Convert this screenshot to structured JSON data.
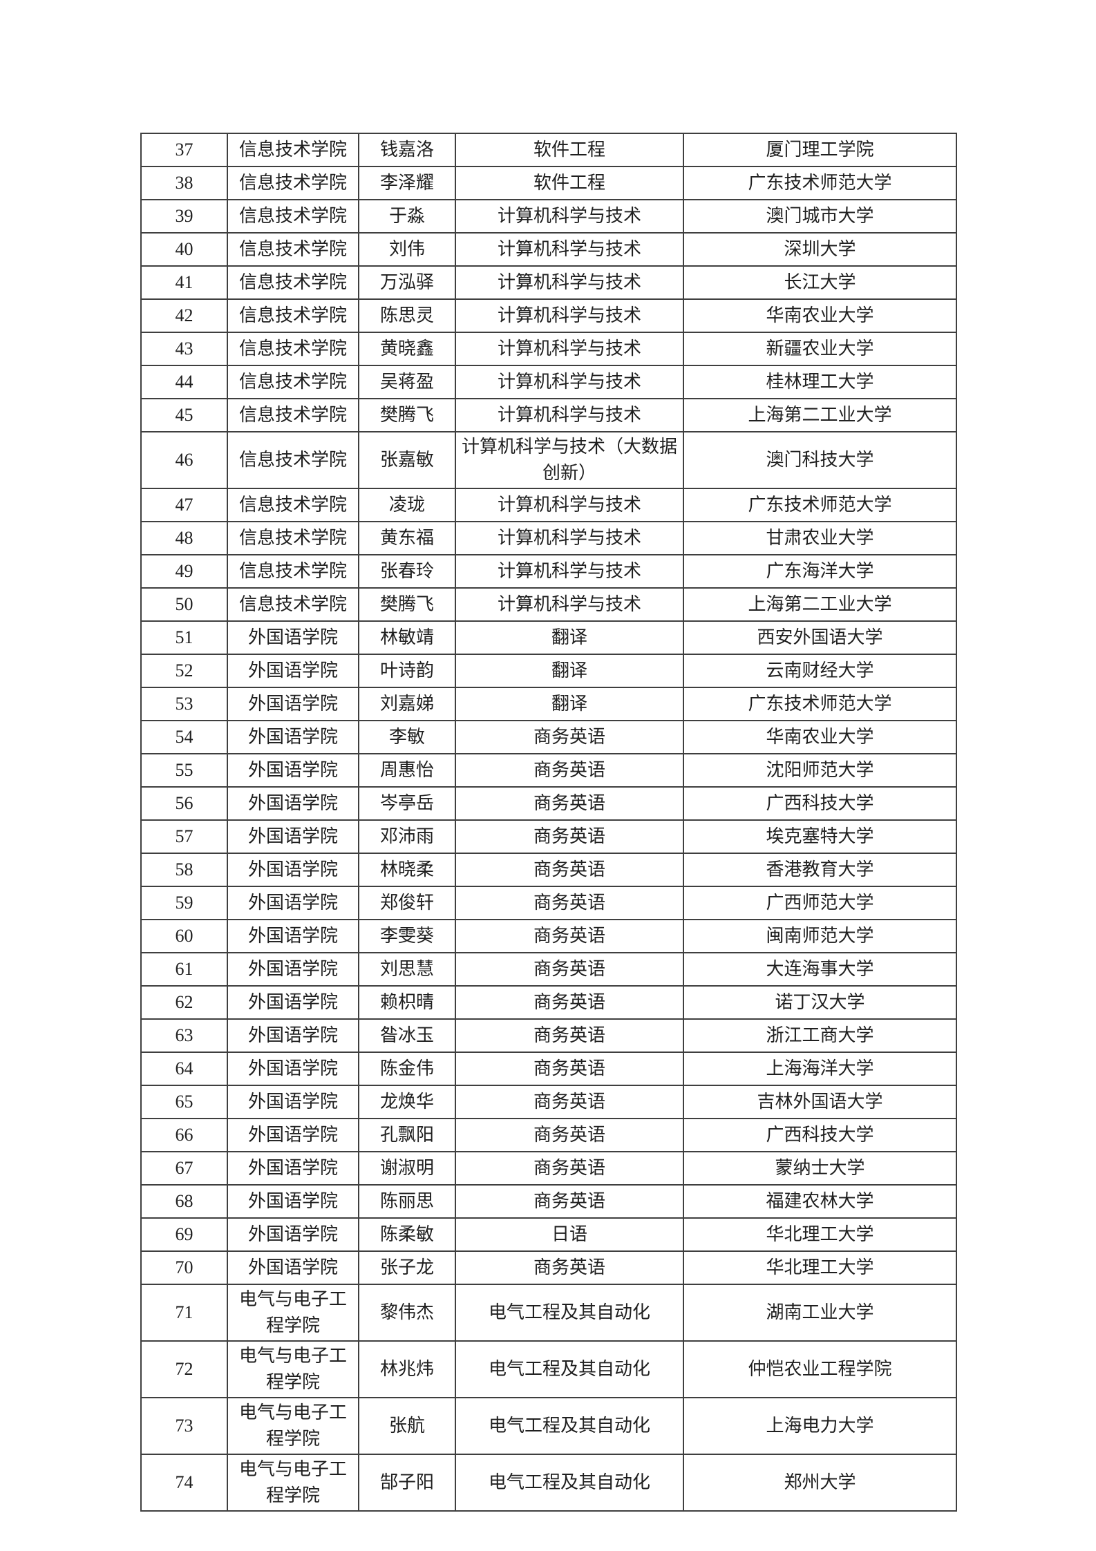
{
  "table": {
    "accent_red": "#e23b2e",
    "text_color": "#1f1f1f",
    "border_color": "#3f3f3f",
    "rows": [
      {
        "num": "37",
        "college": "信息技术学院",
        "name": "钱嘉洛",
        "major": "软件工程",
        "university": "厦门理工学院",
        "red": false
      },
      {
        "num": "38",
        "college": "信息技术学院",
        "name": "李泽耀",
        "major": "软件工程",
        "university": "广东技术师范大学",
        "red": false
      },
      {
        "num": "39",
        "college": "信息技术学院",
        "name": "于淼",
        "major": "计算机科学与技术",
        "university": "澳门城市大学",
        "red": false
      },
      {
        "num": "40",
        "college": "信息技术学院",
        "name": "刘伟",
        "major": "计算机科学与技术",
        "university": "深圳大学",
        "red": false
      },
      {
        "num": "41",
        "college": "信息技术学院",
        "name": "万泓驿",
        "major": "计算机科学与技术",
        "university": "长江大学",
        "red": false
      },
      {
        "num": "42",
        "college": "信息技术学院",
        "name": "陈思灵",
        "major": "计算机科学与技术",
        "university": "华南农业大学",
        "red": true
      },
      {
        "num": "43",
        "college": "信息技术学院",
        "name": "黄晓鑫",
        "major": "计算机科学与技术",
        "university": "新疆农业大学",
        "red": false
      },
      {
        "num": "44",
        "college": "信息技术学院",
        "name": "吴蒋盈",
        "major": "计算机科学与技术",
        "university": "桂林理工大学",
        "red": false
      },
      {
        "num": "45",
        "college": "信息技术学院",
        "name": "樊腾飞",
        "major": "计算机科学与技术",
        "university": "上海第二工业大学",
        "red": false
      },
      {
        "num": "46",
        "college": "信息技术学院",
        "name": "张嘉敏",
        "major": "计算机科学与技术（大数据创新）",
        "university": "澳门科技大学",
        "red": false
      },
      {
        "num": "47",
        "college": "信息技术学院",
        "name": "凌珑",
        "major": "计算机科学与技术",
        "university": "广东技术师范大学",
        "red": false
      },
      {
        "num": "48",
        "college": "信息技术学院",
        "name": "黄东福",
        "major": "计算机科学与技术",
        "university": "甘肃农业大学",
        "red": false
      },
      {
        "num": "49",
        "college": "信息技术学院",
        "name": "张春玲",
        "major": "计算机科学与技术",
        "university": "广东海洋大学",
        "red": false
      },
      {
        "num": "50",
        "college": "信息技术学院",
        "name": "樊腾飞",
        "major": "计算机科学与技术",
        "university": "上海第二工业大学",
        "red": false
      },
      {
        "num": "51",
        "college": "外国语学院",
        "name": "林敏靖",
        "major": "翻译",
        "university": "西安外国语大学",
        "red": false
      },
      {
        "num": "52",
        "college": "外国语学院",
        "name": "叶诗韵",
        "major": "翻译",
        "university": "云南财经大学",
        "red": false
      },
      {
        "num": "53",
        "college": "外国语学院",
        "name": "刘嘉娣",
        "major": "翻译",
        "university": "广东技术师范大学",
        "red": false
      },
      {
        "num": "54",
        "college": "外国语学院",
        "name": "李敏",
        "major": "商务英语",
        "university": "华南农业大学",
        "red": true
      },
      {
        "num": "55",
        "college": "外国语学院",
        "name": "周惠怡",
        "major": "商务英语",
        "university": "沈阳师范大学",
        "red": false
      },
      {
        "num": "56",
        "college": "外国语学院",
        "name": "岑亭岳",
        "major": "商务英语",
        "university": "广西科技大学",
        "red": false
      },
      {
        "num": "57",
        "college": "外国语学院",
        "name": "邓沛雨",
        "major": "商务英语",
        "university": "埃克塞特大学",
        "red": false
      },
      {
        "num": "58",
        "college": "外国语学院",
        "name": "林晓柔",
        "major": "商务英语",
        "university": "香港教育大学",
        "red": false
      },
      {
        "num": "59",
        "college": "外国语学院",
        "name": "郑俊轩",
        "major": "商务英语",
        "university": "广西师范大学",
        "red": false
      },
      {
        "num": "60",
        "college": "外国语学院",
        "name": "李雯葵",
        "major": "商务英语",
        "university": "闽南师范大学",
        "red": false
      },
      {
        "num": "61",
        "college": "外国语学院",
        "name": "刘思慧",
        "major": "商务英语",
        "university": "大连海事大学",
        "red": true
      },
      {
        "num": "62",
        "college": "外国语学院",
        "name": "赖枳晴",
        "major": "商务英语",
        "university": "诺丁汉大学",
        "red": false
      },
      {
        "num": "63",
        "college": "外国语学院",
        "name": "昝冰玉",
        "major": "商务英语",
        "university": "浙江工商大学",
        "red": false
      },
      {
        "num": "64",
        "college": "外国语学院",
        "name": "陈金伟",
        "major": "商务英语",
        "university": "上海海洋大学",
        "red": true
      },
      {
        "num": "65",
        "college": "外国语学院",
        "name": "龙焕华",
        "major": "商务英语",
        "university": "吉林外国语大学",
        "red": false
      },
      {
        "num": "66",
        "college": "外国语学院",
        "name": "孔飘阳",
        "major": "商务英语",
        "university": "广西科技大学",
        "red": false
      },
      {
        "num": "67",
        "college": "外国语学院",
        "name": "谢淑明",
        "major": "商务英语",
        "university": "蒙纳士大学",
        "red": false
      },
      {
        "num": "68",
        "college": "外国语学院",
        "name": "陈丽思",
        "major": "商务英语",
        "university": "福建农林大学",
        "red": false
      },
      {
        "num": "69",
        "college": "外国语学院",
        "name": "陈柔敏",
        "major": "日语",
        "university": "华北理工大学",
        "red": false
      },
      {
        "num": "70",
        "college": "外国语学院",
        "name": "张子龙",
        "major": "商务英语",
        "university": "华北理工大学",
        "red": false
      },
      {
        "num": "71",
        "college": "电气与电子工程学院",
        "name": "黎伟杰",
        "major": "电气工程及其自动化",
        "university": "湖南工业大学",
        "red": false
      },
      {
        "num": "72",
        "college": "电气与电子工程学院",
        "name": "林兆炜",
        "major": "电气工程及其自动化",
        "university": "仲恺农业工程学院",
        "red": false
      },
      {
        "num": "73",
        "college": "电气与电子工程学院",
        "name": "张航",
        "major": "电气工程及其自动化",
        "university": "上海电力大学",
        "red": false
      },
      {
        "num": "74",
        "college": "电气与电子工程学院",
        "name": "郜子阳",
        "major": "电气工程及其自动化",
        "university": "郑州大学",
        "red": true
      }
    ]
  }
}
